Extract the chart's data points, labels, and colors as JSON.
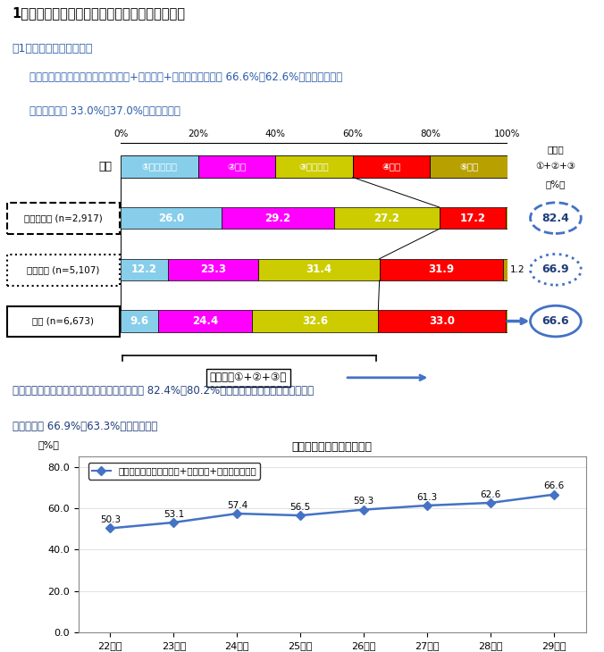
{
  "title_main": "1　介護サービスに従事する従業員の過不足状況",
  "subtitle1": "（1）従業員の過不足状況",
  "body_text1": "　全体での不足感（「大いに不足」+「不足」+「やや不足」）は 66.6%（62.6%）であった。ま",
  "body_text2": "た「適当」は 33.0%（37.0%）であった。",
  "legend_labels": [
    "①大いに不足",
    "②不足",
    "③やや不足",
    "④適当",
    "⑤過剤"
  ],
  "legend_colors": [
    "#87CEEB",
    "#FF00FF",
    "#CCCC00",
    "#FF0000",
    "#B8A000"
  ],
  "bar_rows": [
    {
      "label": "訪問介護員 (n=2,917)",
      "values": [
        26.0,
        29.2,
        27.2,
        17.2,
        0.4
      ],
      "shortage": 82.4,
      "border": "dashed"
    },
    {
      "label": "介護職員 (n=5,107)",
      "values": [
        12.2,
        23.3,
        31.4,
        31.9,
        1.2
      ],
      "shortage": 66.9,
      "border": "dotted"
    },
    {
      "label": "全体 (n=6,673)",
      "values": [
        9.6,
        24.4,
        32.6,
        33.0,
        0.4
      ],
      "shortage": 66.6,
      "border": "solid"
    }
  ],
  "bar_colors": [
    "#87CEEB",
    "#FF00FF",
    "#CCCC00",
    "#FF0000",
    "#B8A000"
  ],
  "shortage_header": [
    "不足感",
    "①+②+③",
    "（%）"
  ],
  "bracket_label": "不足感（①+②+③）",
  "paragraph_text": "　職種別で見ると、「訪問介護員」の不足感は 82.4%（80.2%）と最も高く、次いで「介護職員",
  "paragraph_text2": "の不足感が 66.9%（63.3%）であった。",
  "line_chart_title": "従業員の不足感の経年変化",
  "line_legend": "不足感（「大いに不足」+「不足」+「やや不足」）",
  "line_x_labels": [
    "22年度",
    "23年度",
    "24年度",
    "25年度",
    "26年度",
    "27年度",
    "28年度",
    "29年度"
  ],
  "line_y_values": [
    50.3,
    53.1,
    57.4,
    56.5,
    59.3,
    61.3,
    62.6,
    66.6
  ],
  "line_color": "#4472C4",
  "line_ylabel": "（%）",
  "line_yticks": [
    0.0,
    20.0,
    40.0,
    60.0,
    80.0
  ],
  "bg_color": "#FFFFFF",
  "kbn_label": "区分"
}
